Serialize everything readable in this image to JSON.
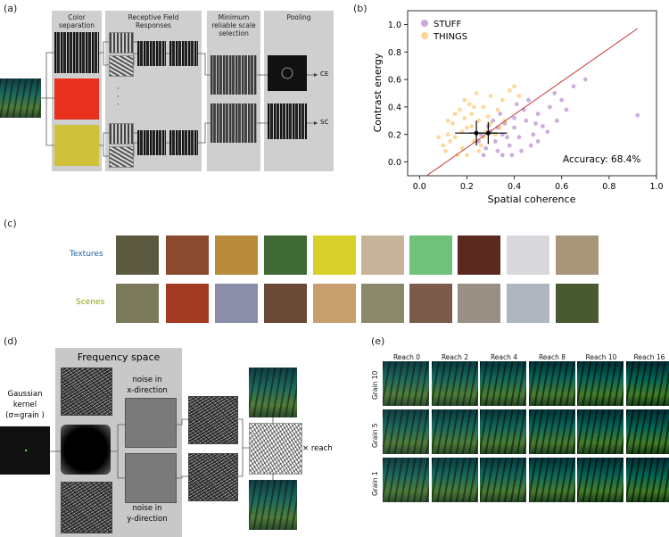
{
  "panels": {
    "a": {
      "label": "(a)",
      "stages": [
        "Color\nseparation",
        "Receptive Field\nResponses",
        "Minimum\nreliable scale\nselection",
        "Pooling"
      ],
      "outputs": [
        "CE",
        "SC"
      ],
      "dots": "·\n·\n·"
    },
    "b": {
      "label": "(b)"
    },
    "c": {
      "label": "(c)",
      "rows": [
        {
          "name": "Textures",
          "color": "#1f5fa6"
        },
        {
          "name": "Scenes",
          "color": "#8aa000"
        }
      ]
    },
    "d": {
      "label": "(d)",
      "kernel_label": "Gaussian\nkernel\n(σ=grain )",
      "freq_title": "Frequency space",
      "noise_x": "noise in\nx-direction",
      "noise_y": "noise in\ny-direction",
      "reach": "× reach"
    },
    "e": {
      "label": "(e)",
      "columns": [
        "Reach 0",
        "Reach 2",
        "Reach 4",
        "Reach 8",
        "Reach 10",
        "Reach 16"
      ],
      "rows": [
        "Grain 10",
        "Grain 5",
        "Grain 1"
      ]
    }
  },
  "chart_data": {
    "type": "scatter",
    "xlabel": "Spatial coherence",
    "ylabel": "Contrast energy",
    "xlim": [
      -0.05,
      1.0
    ],
    "ylim": [
      -0.1,
      1.1
    ],
    "xticks": [
      "0.0",
      "0.2",
      "0.4",
      "0.6",
      "0.8",
      "1.0"
    ],
    "yticks": [
      "0.0",
      "0.2",
      "0.4",
      "0.6",
      "0.8",
      "1.0"
    ],
    "legend": "top-left",
    "annotation": "Accuracy: 68.4%",
    "series": [
      {
        "name": "STUFF",
        "color": "#a56cc1",
        "mean": [
          0.29,
          0.21
        ],
        "x_err": 0.08,
        "y_err": 0.08,
        "points": [
          [
            0.32,
            0.15
          ],
          [
            0.35,
            0.2
          ],
          [
            0.4,
            0.25
          ],
          [
            0.28,
            0.1
          ],
          [
            0.45,
            0.3
          ],
          [
            0.38,
            0.12
          ],
          [
            0.5,
            0.35
          ],
          [
            0.42,
            0.18
          ],
          [
            0.33,
            0.08
          ],
          [
            0.55,
            0.4
          ],
          [
            0.3,
            0.22
          ],
          [
            0.36,
            0.28
          ],
          [
            0.48,
            0.2
          ],
          [
            0.27,
            0.05
          ],
          [
            0.6,
            0.45
          ],
          [
            0.44,
            0.38
          ],
          [
            0.39,
            0.05
          ],
          [
            0.52,
            0.26
          ],
          [
            0.31,
            0.3
          ],
          [
            0.47,
            0.12
          ],
          [
            0.34,
            0.35
          ],
          [
            0.41,
            0.42
          ],
          [
            0.25,
            0.15
          ],
          [
            0.58,
            0.3
          ],
          [
            0.65,
            0.55
          ],
          [
            0.92,
            0.34
          ],
          [
            0.37,
            0.18
          ],
          [
            0.43,
            0.08
          ],
          [
            0.29,
            0.26
          ],
          [
            0.5,
            0.15
          ],
          [
            0.62,
            0.38
          ],
          [
            0.46,
            0.45
          ],
          [
            0.35,
            0.05
          ],
          [
            0.4,
            0.32
          ],
          [
            0.54,
            0.22
          ],
          [
            0.33,
            0.25
          ],
          [
            0.26,
            0.2
          ],
          [
            0.49,
            0.28
          ],
          [
            0.57,
            0.5
          ],
          [
            0.7,
            0.6
          ]
        ]
      },
      {
        "name": "THINGS",
        "color": "#f9b94b",
        "mean": [
          0.24,
          0.21
        ],
        "x_err": 0.09,
        "y_err": 0.09,
        "points": [
          [
            0.2,
            0.25
          ],
          [
            0.15,
            0.18
          ],
          [
            0.25,
            0.3
          ],
          [
            0.18,
            0.1
          ],
          [
            0.22,
            0.35
          ],
          [
            0.12,
            0.2
          ],
          [
            0.3,
            0.28
          ],
          [
            0.1,
            0.12
          ],
          [
            0.27,
            0.4
          ],
          [
            0.16,
            0.05
          ],
          [
            0.23,
            0.15
          ],
          [
            0.19,
            0.32
          ],
          [
            0.33,
            0.38
          ],
          [
            0.14,
            0.28
          ],
          [
            0.28,
            0.22
          ],
          [
            0.21,
            0.42
          ],
          [
            0.35,
            0.45
          ],
          [
            0.11,
            0.08
          ],
          [
            0.26,
            0.12
          ],
          [
            0.17,
            0.38
          ],
          [
            0.24,
            0.5
          ],
          [
            0.3,
            0.48
          ],
          [
            0.13,
            0.15
          ],
          [
            0.2,
            0.05
          ],
          [
            0.38,
            0.52
          ],
          [
            0.29,
            0.33
          ],
          [
            0.18,
            0.22
          ],
          [
            0.25,
            0.08
          ],
          [
            0.32,
            0.2
          ],
          [
            0.15,
            0.35
          ],
          [
            0.08,
            0.18
          ],
          [
            0.36,
            0.3
          ],
          [
            0.22,
            0.26
          ],
          [
            0.4,
            0.55
          ],
          [
            0.19,
            0.45
          ],
          [
            0.27,
            0.18
          ],
          [
            0.42,
            0.48
          ],
          [
            0.12,
            0.3
          ],
          [
            0.34,
            0.25
          ],
          [
            0.23,
            0.4
          ]
        ]
      }
    ]
  }
}
